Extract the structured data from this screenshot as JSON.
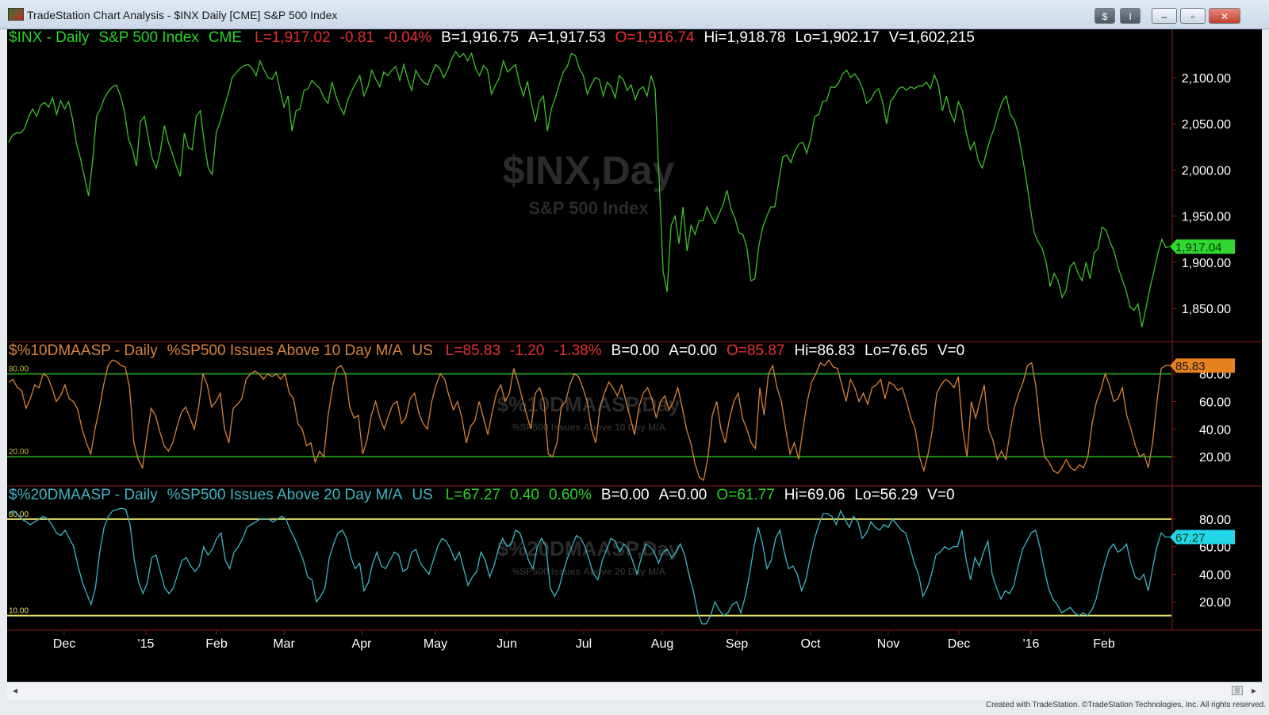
{
  "window": {
    "title": "TradeStation Chart Analysis - $INX Daily [CME] S&P 500 Index",
    "buttons": {
      "dollar": "$",
      "info": "I",
      "minimize": "–",
      "restore": "▫",
      "close": "✕"
    }
  },
  "colors": {
    "background": "#000000",
    "price_line": "#3fbf2f",
    "osc10_line": "#d9823b",
    "osc20_line": "#3fb6c4",
    "level_green": "#1f8a1f",
    "level_yellow": "#e8e26a",
    "panel_divider": "#8b1a1a",
    "up_text": "#29d329",
    "down_text": "#e53030",
    "label_text": "#ffffff"
  },
  "panels": [
    {
      "header": [
        {
          "text": "$INX - Daily",
          "color": "#29d329"
        },
        {
          "text": "S&P 500 Index",
          "color": "#29d329"
        },
        {
          "text": "CME",
          "color": "#29d329"
        },
        {
          "text": "L=1,917.02",
          "color": "#e53030"
        },
        {
          "text": "-0.81",
          "color": "#e53030"
        },
        {
          "text": "-0.04%",
          "color": "#e53030"
        },
        {
          "text": "B=1,916.75",
          "color": "#ffffff"
        },
        {
          "text": "A=1,917.53",
          "color": "#ffffff"
        },
        {
          "text": "O=1,916.74",
          "color": "#e53030"
        },
        {
          "text": "Hi=1,918.78",
          "color": "#ffffff"
        },
        {
          "text": "Lo=1,902.17",
          "color": "#ffffff"
        },
        {
          "text": "V=1,602,215",
          "color": "#ffffff"
        }
      ],
      "watermark": "$INX,Day",
      "watermark_sub": "S&P 500 Index",
      "last_value": "1,917.04"
    },
    {
      "header": [
        {
          "text": "$%10DMAASP - Daily",
          "color": "#d9823b"
        },
        {
          "text": "%SP500 Issues Above 10 Day M/A",
          "color": "#d9823b"
        },
        {
          "text": "US",
          "color": "#d9823b"
        },
        {
          "text": "L=85.83",
          "color": "#e53030"
        },
        {
          "text": "-1.20",
          "color": "#e53030"
        },
        {
          "text": "-1.38%",
          "color": "#e53030"
        },
        {
          "text": "B=0.00",
          "color": "#ffffff"
        },
        {
          "text": "A=0.00",
          "color": "#ffffff"
        },
        {
          "text": "O=85.87",
          "color": "#e53030"
        },
        {
          "text": "Hi=86.83",
          "color": "#ffffff"
        },
        {
          "text": "Lo=76.65",
          "color": "#ffffff"
        },
        {
          "text": "V=0",
          "color": "#ffffff"
        }
      ],
      "watermark": "$%10DMAASP,Day",
      "watermark_sub": "%SP500 Issues Above 10 Day M/A",
      "level_labels": [
        "80.00",
        "20.00"
      ],
      "last_value": "85.83"
    },
    {
      "header": [
        {
          "text": "$%20DMAASP - Daily",
          "color": "#3fb6c4"
        },
        {
          "text": "%SP500 Issues Above 20 Day M/A",
          "color": "#3fb6c4"
        },
        {
          "text": "US",
          "color": "#3fb6c4"
        },
        {
          "text": "L=67.27",
          "color": "#29d329"
        },
        {
          "text": "0.40",
          "color": "#29d329"
        },
        {
          "text": "0.60%",
          "color": "#29d329"
        },
        {
          "text": "B=0.00",
          "color": "#ffffff"
        },
        {
          "text": "A=0.00",
          "color": "#ffffff"
        },
        {
          "text": "O=61.77",
          "color": "#29d329"
        },
        {
          "text": "Hi=69.06",
          "color": "#ffffff"
        },
        {
          "text": "Lo=56.29",
          "color": "#ffffff"
        },
        {
          "text": "V=0",
          "color": "#ffffff"
        }
      ],
      "watermark": "$%20DMAASP,Day",
      "watermark_sub": "%SP500 Issues Above 20 Day M/A",
      "level_labels": [
        "80.00",
        "10.00"
      ],
      "last_value": "67.27"
    }
  ],
  "footer": {
    "copyright": "Created with TradeStation. ©TradeStation Technologies, Inc. All rights reserved."
  },
  "chart_data": [
    {
      "type": "line",
      "title": "$INX - Daily",
      "x_ticks": [
        "Dec",
        "'15",
        "Feb",
        "Mar",
        "Apr",
        "May",
        "Jun",
        "Jul",
        "Aug",
        "Sep",
        "Oct",
        "Nov",
        "Dec",
        "'16",
        "Feb"
      ],
      "y_ticks": [
        "2,100.00",
        "2,050.00",
        "2,000.00",
        "1,950.00",
        "1,900.00",
        "1,850.00"
      ],
      "ylim": [
        1815,
        2135
      ],
      "series": [
        {
          "name": "$INX",
          "values": [
            2030,
            2038,
            2040,
            2040,
            2045,
            2058,
            2066,
            2058,
            2070,
            2073,
            2068,
            2078,
            2060,
            2075,
            2066,
            2074,
            2055,
            2028,
            2012,
            1992,
            1972,
            2008,
            2058,
            2066,
            2078,
            2085,
            2090,
            2092,
            2080,
            2064,
            2034,
            2022,
            2004,
            2052,
            2058,
            2034,
            2012,
            2002,
            2020,
            2048,
            2030,
            2018,
            2004,
            1993,
            2040,
            2024,
            2022,
            2058,
            2064,
            2030,
            2002,
            1995,
            2040,
            2052,
            2068,
            2082,
            2100,
            2105,
            2110,
            2113,
            2114,
            2110,
            2102,
            2118,
            2108,
            2100,
            2098,
            2106,
            2086,
            2068,
            2080,
            2042,
            2064,
            2066,
            2086,
            2088,
            2097,
            2092,
            2088,
            2078,
            2072,
            2095,
            2080,
            2068,
            2060,
            2076,
            2086,
            2094,
            2102,
            2080,
            2090,
            2108,
            2098,
            2090,
            2106,
            2102,
            2108,
            2112,
            2097,
            2114,
            2098,
            2086,
            2108,
            2100,
            2095,
            2092,
            2104,
            2114,
            2110,
            2100,
            2108,
            2120,
            2128,
            2122,
            2126,
            2118,
            2126,
            2110,
            2102,
            2113,
            2108,
            2082,
            2092,
            2100,
            2118,
            2106,
            2110,
            2114,
            2094,
            2080,
            2096,
            2072,
            2052,
            2074,
            2080,
            2042,
            2066,
            2078,
            2093,
            2106,
            2112,
            2126,
            2124,
            2110,
            2102,
            2082,
            2092,
            2100,
            2098,
            2080,
            2095,
            2090,
            2078,
            2102,
            2098,
            2086,
            2092,
            2076,
            2087,
            2090,
            2080,
            2102,
            2088,
            1990,
            1890,
            1868,
            1940,
            1950,
            1920,
            1960,
            1912,
            1940,
            1930,
            1945,
            1945,
            1960,
            1950,
            1942,
            1952,
            1962,
            1978,
            1958,
            1948,
            1932,
            1930,
            1916,
            1880,
            1882,
            1918,
            1938,
            1950,
            1960,
            1960,
            1988,
            2014,
            2016,
            2008,
            2020,
            2028,
            2030,
            2018,
            2034,
            2058,
            2060,
            2074,
            2075,
            2090,
            2089,
            2094,
            2104,
            2108,
            2100,
            2104,
            2098,
            2088,
            2072,
            2076,
            2084,
            2088,
            2074,
            2050,
            2074,
            2080,
            2088,
            2090,
            2086,
            2090,
            2088,
            2091,
            2091,
            2095,
            2088,
            2103,
            2092,
            2064,
            2080,
            2062,
            2052,
            2074,
            2064,
            2040,
            2022,
            2030,
            2010,
            2002,
            2018,
            2034,
            2045,
            2062,
            2074,
            2080,
            2060,
            2054,
            2040,
            2015,
            1990,
            1960,
            1932,
            1922,
            1915,
            1900,
            1874,
            1888,
            1880,
            1862,
            1870,
            1895,
            1900,
            1888,
            1880,
            1900,
            1882,
            1910,
            1915,
            1938,
            1935,
            1922,
            1912,
            1895,
            1882,
            1870,
            1852,
            1848,
            1855,
            1830,
            1850,
            1872,
            1890,
            1910,
            1925,
            1916,
            1917
          ]
        }
      ]
    },
    {
      "type": "line",
      "title": "$%10DMAASP - Daily",
      "y_ticks": [
        "80.00",
        "60.00",
        "40.00",
        "20.00"
      ],
      "ylim": [
        0,
        93
      ],
      "levels": [
        80,
        20
      ],
      "series": [
        {
          "name": "$%10DMAASP",
          "values": [
            74,
            76,
            70,
            68,
            55,
            62,
            72,
            70,
            80,
            78,
            70,
            60,
            64,
            72,
            62,
            60,
            54,
            40,
            30,
            22,
            40,
            55,
            72,
            86,
            90,
            89,
            86,
            85,
            70,
            30,
            18,
            12,
            35,
            55,
            50,
            38,
            28,
            24,
            30,
            42,
            52,
            56,
            48,
            40,
            56,
            80,
            72,
            56,
            60,
            66,
            40,
            30,
            55,
            58,
            62,
            76,
            80,
            82,
            80,
            76,
            80,
            78,
            80,
            76,
            80,
            66,
            62,
            44,
            40,
            28,
            30,
            16,
            24,
            20,
            50,
            70,
            84,
            86,
            80,
            56,
            48,
            50,
            22,
            32,
            50,
            60,
            48,
            40,
            50,
            58,
            60,
            44,
            48,
            62,
            66,
            52,
            44,
            40,
            60,
            72,
            80,
            76,
            64,
            54,
            60,
            48,
            30,
            42,
            46,
            60,
            48,
            36,
            52,
            66,
            72,
            60,
            66,
            84,
            74,
            62,
            50,
            40,
            66,
            70,
            60,
            22,
            20,
            30,
            56,
            60,
            72,
            80,
            78,
            70,
            60,
            40,
            30,
            56,
            66,
            74,
            70,
            64,
            72,
            60,
            48,
            36,
            56,
            66,
            70,
            62,
            48,
            60,
            64,
            54,
            60,
            70,
            56,
            40,
            30,
            15,
            5,
            3,
            20,
            50,
            60,
            40,
            30,
            48,
            60,
            66,
            48,
            40,
            30,
            26,
            70,
            50,
            80,
            86,
            70,
            60,
            40,
            22,
            30,
            18,
            40,
            60,
            74,
            80,
            88,
            86,
            90,
            85,
            84,
            72,
            60,
            76,
            70,
            60,
            66,
            58,
            70,
            72,
            76,
            62,
            74,
            72,
            68,
            70,
            60,
            48,
            40,
            20,
            10,
            22,
            40,
            66,
            72,
            76,
            74,
            70,
            78,
            40,
            20,
            60,
            48,
            60,
            72,
            40,
            32,
            18,
            24,
            18,
            38,
            56,
            66,
            74,
            86,
            88,
            70,
            40,
            20,
            16,
            10,
            8,
            12,
            18,
            12,
            10,
            14,
            12,
            20,
            44,
            60,
            68,
            80,
            72,
            60,
            62,
            70,
            50,
            40,
            28,
            20,
            22,
            12,
            30,
            60,
            84,
            86,
            86
          ]
        }
      ]
    },
    {
      "type": "line",
      "title": "$%20DMAASP - Daily",
      "y_ticks": [
        "80.00",
        "60.00",
        "40.00",
        "20.00"
      ],
      "ylim": [
        0,
        92
      ],
      "levels": [
        80,
        10
      ],
      "series": [
        {
          "name": "$%20DMAASP",
          "values": [
            84,
            86,
            84,
            80,
            78,
            76,
            78,
            80,
            82,
            80,
            76,
            70,
            68,
            72,
            66,
            60,
            46,
            34,
            26,
            18,
            30,
            56,
            74,
            82,
            86,
            87,
            88,
            87,
            76,
            50,
            34,
            26,
            34,
            52,
            54,
            42,
            30,
            26,
            30,
            40,
            50,
            52,
            46,
            42,
            46,
            60,
            54,
            58,
            66,
            70,
            50,
            44,
            56,
            60,
            66,
            74,
            76,
            78,
            80,
            80,
            80,
            78,
            80,
            82,
            80,
            72,
            66,
            58,
            50,
            38,
            36,
            20,
            24,
            30,
            52,
            62,
            70,
            72,
            66,
            52,
            44,
            48,
            28,
            34,
            48,
            56,
            46,
            44,
            50,
            56,
            54,
            42,
            44,
            56,
            58,
            48,
            44,
            40,
            50,
            60,
            66,
            64,
            58,
            50,
            56,
            44,
            32,
            38,
            42,
            56,
            50,
            38,
            46,
            58,
            66,
            60,
            62,
            72,
            70,
            60,
            50,
            44,
            60,
            66,
            60,
            30,
            24,
            30,
            42,
            52,
            60,
            68,
            66,
            60,
            50,
            40,
            36,
            50,
            58,
            66,
            64,
            56,
            62,
            58,
            50,
            40,
            52,
            62,
            60,
            56,
            48,
            56,
            58,
            52,
            56,
            62,
            54,
            40,
            28,
            12,
            4,
            4,
            10,
            20,
            14,
            10,
            12,
            18,
            20,
            12,
            24,
            40,
            60,
            74,
            62,
            44,
            50,
            66,
            72,
            56,
            44,
            46,
            40,
            28,
            36,
            52,
            66,
            76,
            84,
            84,
            82,
            76,
            86,
            80,
            74,
            82,
            78,
            66,
            70,
            78,
            74,
            72,
            76,
            74,
            80,
            76,
            72,
            70,
            60,
            48,
            40,
            24,
            30,
            40,
            54,
            56,
            60,
            58,
            60,
            60,
            72,
            50,
            36,
            52,
            46,
            56,
            64,
            40,
            30,
            22,
            28,
            26,
            32,
            46,
            58,
            64,
            70,
            72,
            60,
            44,
            30,
            22,
            18,
            12,
            14,
            16,
            12,
            10,
            12,
            10,
            14,
            22,
            36,
            48,
            58,
            62,
            56,
            58,
            62,
            48,
            38,
            36,
            40,
            28,
            44,
            60,
            70,
            67,
            67
          ]
        }
      ]
    }
  ]
}
